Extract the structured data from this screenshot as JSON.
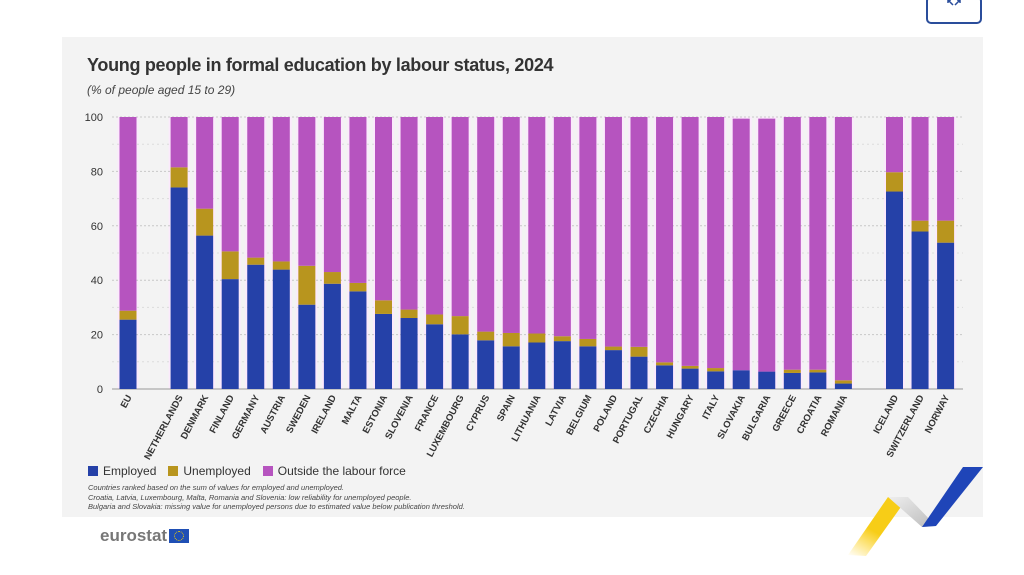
{
  "header": {
    "expand_icon": "expand-arrows-icon"
  },
  "chart_data": {
    "type": "bar",
    "stacked": true,
    "title": "Young people in formal education by labour status, 2024",
    "subtitle": "(% of people aged 15 to 29)",
    "ylim": [
      0,
      100
    ],
    "yticks": [
      0,
      20,
      40,
      60,
      80,
      100
    ],
    "grid": true,
    "legend_placement": "bottom-left",
    "categories": [
      "EU",
      "NETHERLANDS",
      "DENMARK",
      "FINLAND",
      "GERMANY",
      "AUSTRIA",
      "SWEDEN",
      "IRELAND",
      "MALTA",
      "ESTONIA",
      "SLOVENIA",
      "FRANCE",
      "LUXEMBOURG",
      "CYPRUS",
      "SPAIN",
      "LITHUANIA",
      "LATVIA",
      "BELGIUM",
      "POLAND",
      "PORTUGAL",
      "CZECHIA",
      "HUNGARY",
      "ITALY",
      "SLOVAKIA",
      "BULGARIA",
      "GREECE",
      "CROATIA",
      "ROMANIA",
      "ICELAND",
      "SWITZERLAND",
      "NORWAY"
    ],
    "groups": [
      [
        "EU"
      ],
      [
        "NETHERLANDS",
        "DENMARK",
        "FINLAND",
        "GERMANY",
        "AUSTRIA",
        "SWEDEN",
        "IRELAND",
        "MALTA",
        "ESTONIA",
        "SLOVENIA",
        "FRANCE",
        "LUXEMBOURG",
        "CYPRUS",
        "SPAIN",
        "LITHUANIA",
        "LATVIA",
        "BELGIUM",
        "POLAND",
        "PORTUGAL",
        "CZECHIA",
        "HUNGARY",
        "ITALY",
        "SLOVAKIA",
        "BULGARIA",
        "GREECE",
        "CROATIA",
        "ROMANIA"
      ],
      [
        "ICELAND",
        "SWITZERLAND",
        "NORWAY"
      ]
    ],
    "series": [
      {
        "name": "Employed",
        "color": "#2541a8",
        "values": [
          25.5,
          74.1,
          56.4,
          40.4,
          45.7,
          43.9,
          31.0,
          38.7,
          35.9,
          27.6,
          26.1,
          23.8,
          20.1,
          17.9,
          15.7,
          17.1,
          17.6,
          15.7,
          14.3,
          11.9,
          8.7,
          7.5,
          6.5,
          6.9,
          6.4,
          5.9,
          6.1,
          2.0,
          72.6,
          57.9,
          53.8
        ]
      },
      {
        "name": "Unemployed",
        "color": "#b8951e",
        "values": [
          3.3,
          7.4,
          9.9,
          10.2,
          2.6,
          3.0,
          14.3,
          4.3,
          3.1,
          5.0,
          3.1,
          3.6,
          6.7,
          3.2,
          4.9,
          3.3,
          1.8,
          2.7,
          1.3,
          3.6,
          1.1,
          1.0,
          1.2,
          null,
          null,
          1.2,
          1.0,
          1.2,
          7.1,
          4.0,
          8.1
        ]
      },
      {
        "name": "Outside the labour force",
        "color": "#b654bf",
        "values": [
          71.2,
          18.5,
          33.7,
          49.4,
          51.7,
          53.1,
          54.7,
          57.0,
          61.0,
          67.4,
          70.8,
          72.6,
          73.2,
          78.9,
          79.4,
          79.6,
          80.6,
          81.6,
          84.4,
          84.5,
          90.2,
          91.5,
          92.3,
          92.5,
          93.0,
          92.9,
          92.9,
          96.8,
          20.3,
          38.1,
          38.1
        ]
      }
    ],
    "notes": [
      "Countries ranked based on the sum of values for employed and unemployed.",
      "Croatia, Latvia, Luxembourg, Malta, Romania and Slovenia: low reliability for unemployed people.",
      "Bulgaria and Slovakia: missing value for unemployed persons due to estimated value below publication threshold."
    ]
  },
  "footer": {
    "logo": "eurostat"
  }
}
